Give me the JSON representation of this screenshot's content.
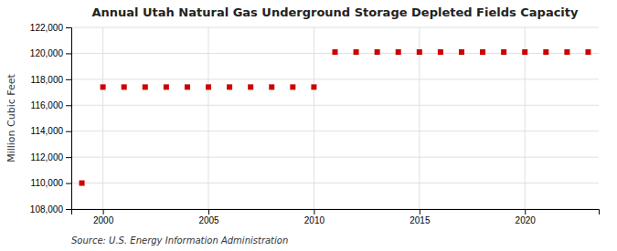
{
  "chart_data": {
    "type": "scatter",
    "title": "Annual Utah Natural Gas Underground Storage Depleted Fields Capacity",
    "ylabel": "Million Cubic Feet",
    "source": "Source: U.S. Energy Information Administration",
    "color": "#cc0000",
    "marker": "square",
    "grid": true,
    "x": [
      1999,
      2000,
      2001,
      2002,
      2003,
      2004,
      2005,
      2006,
      2007,
      2008,
      2009,
      2010,
      2011,
      2012,
      2013,
      2014,
      2015,
      2016,
      2017,
      2018,
      2019,
      2020,
      2021,
      2022,
      2023
    ],
    "values": [
      110000,
      117400,
      117400,
      117400,
      117400,
      117400,
      117400,
      117400,
      117400,
      117400,
      117400,
      117400,
      120100,
      120100,
      120100,
      120100,
      120100,
      120100,
      120100,
      120100,
      120100,
      120100,
      120100,
      120100,
      120100
    ],
    "xlim": [
      1998.5,
      2023.5
    ],
    "xticks": [
      2000,
      2005,
      2010,
      2015,
      2020
    ],
    "ylim": [
      108000,
      122000
    ],
    "yticks": [
      {
        "value": 108000,
        "label": "108,000"
      },
      {
        "value": 110000,
        "label": "110,000"
      },
      {
        "value": 112000,
        "label": "112,000"
      },
      {
        "value": 114000,
        "label": "114,000"
      },
      {
        "value": 116000,
        "label": "116,000"
      },
      {
        "value": 118000,
        "label": "118,000"
      },
      {
        "value": 120000,
        "label": "120,000"
      },
      {
        "value": 122000,
        "label": "122,000"
      }
    ]
  }
}
